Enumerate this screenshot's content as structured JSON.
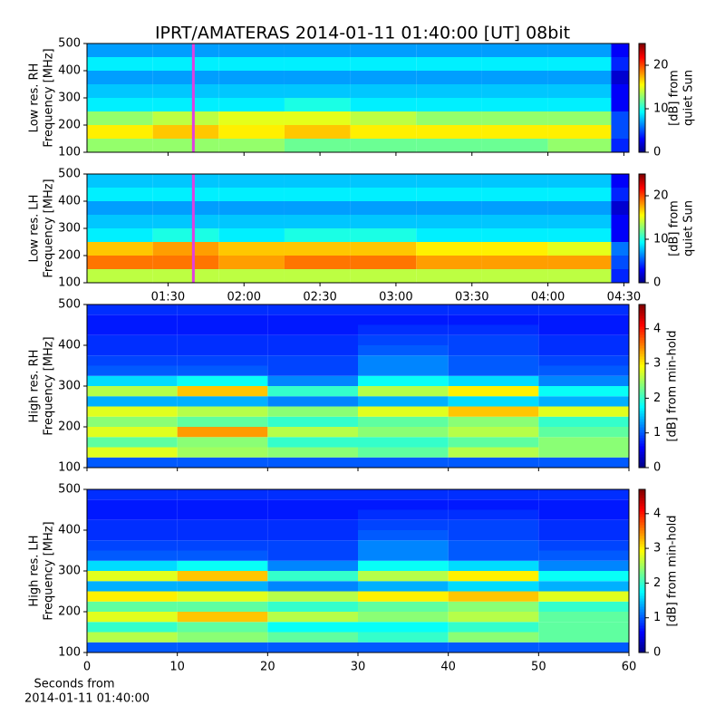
{
  "title": "IPRT/AMATERAS 2014-01-11 01:40:00 [UT]   08bit",
  "chart_data": [
    {
      "type": "heatmap",
      "ylabel": [
        "Low res. RH",
        "Frequency [MHz]"
      ],
      "cbar_label": [
        "[dB] from",
        "quiet Sun"
      ],
      "xlim": [
        58,
        272
      ],
      "xticks": [
        90,
        120,
        150,
        180,
        210,
        240,
        270
      ],
      "ylim": [
        100,
        500
      ],
      "yticks": [
        100,
        200,
        300,
        400,
        500
      ],
      "clim": [
        0,
        25
      ],
      "cticks": [
        0,
        10,
        20
      ],
      "colormap": "jet",
      "vline": {
        "x": 100,
        "color": "#e040e0"
      },
      "x_bins": [
        58,
        84,
        110,
        136,
        162,
        188,
        214,
        240,
        265,
        272
      ],
      "y_bins": [
        100,
        150,
        200,
        250,
        300,
        350,
        400,
        450,
        500
      ],
      "z": [
        [
          13,
          13,
          13,
          12,
          12,
          12,
          12,
          13,
          4
        ],
        [
          16,
          17,
          16,
          17,
          16,
          16,
          16,
          16,
          5
        ],
        [
          13,
          14,
          15,
          15,
          14,
          13,
          13,
          13,
          5
        ],
        [
          9,
          9,
          9,
          10,
          9,
          9,
          9,
          9,
          3
        ],
        [
          8,
          8,
          8,
          8,
          8,
          8,
          8,
          8,
          3
        ],
        [
          7,
          7,
          7,
          7,
          7,
          7,
          7,
          7,
          2
        ],
        [
          9,
          9,
          9,
          9,
          9,
          9,
          9,
          9,
          4
        ],
        [
          7,
          7,
          7,
          7,
          7,
          7,
          7,
          7,
          3
        ]
      ]
    },
    {
      "type": "heatmap",
      "ylabel": [
        "Low res. LH",
        "Frequency [MHz]"
      ],
      "cbar_label": [
        "[dB] from",
        "quiet Sun"
      ],
      "xlim": [
        58,
        272
      ],
      "xticks": [
        {
          "value": 90,
          "label": "01:30"
        },
        {
          "value": 120,
          "label": "02:00"
        },
        {
          "value": 150,
          "label": "02:30"
        },
        {
          "value": 180,
          "label": "03:00"
        },
        {
          "value": 210,
          "label": "03:30"
        },
        {
          "value": 240,
          "label": "04:00"
        },
        {
          "value": 270,
          "label": "04:30"
        }
      ],
      "ylim": [
        100,
        500
      ],
      "yticks": [
        100,
        200,
        300,
        400,
        500
      ],
      "clim": [
        0,
        25
      ],
      "cticks": [
        0,
        10,
        20
      ],
      "colormap": "jet",
      "vline": {
        "x": 100,
        "color": "#e040e0"
      },
      "x_bins": [
        58,
        84,
        110,
        136,
        162,
        188,
        214,
        240,
        265,
        272
      ],
      "y_bins": [
        100,
        150,
        200,
        250,
        300,
        350,
        400,
        450,
        500
      ],
      "z": [
        [
          14,
          14,
          14,
          14,
          14,
          14,
          14,
          14,
          4
        ],
        [
          19,
          19,
          18,
          19,
          19,
          18,
          18,
          18,
          5
        ],
        [
          17,
          18,
          17,
          17,
          17,
          16,
          16,
          15,
          6
        ],
        [
          9,
          10,
          9,
          10,
          10,
          9,
          9,
          9,
          3
        ],
        [
          8,
          8,
          8,
          8,
          8,
          8,
          8,
          8,
          3
        ],
        [
          7,
          7,
          7,
          7,
          7,
          7,
          7,
          7,
          2
        ],
        [
          9,
          9,
          9,
          9,
          9,
          9,
          9,
          9,
          4
        ],
        [
          8,
          8,
          8,
          8,
          8,
          8,
          8,
          8,
          3
        ]
      ]
    },
    {
      "type": "heatmap",
      "ylabel": [
        "High res. RH",
        "Frequency [MHz]"
      ],
      "cbar_label": [
        "[dB] from min-hold"
      ],
      "xlim": [
        0,
        60
      ],
      "xticks": [
        0,
        10,
        20,
        30,
        40,
        50,
        60
      ],
      "ylim": [
        100,
        500
      ],
      "yticks": [
        100,
        200,
        300,
        400,
        500
      ],
      "clim": [
        0,
        4.7
      ],
      "cticks": [
        0,
        1,
        2,
        3,
        4
      ],
      "colormap": "jet",
      "x_bins": [
        0,
        10,
        20,
        30,
        40,
        50,
        60
      ],
      "y_bins": [
        100,
        125,
        150,
        175,
        200,
        225,
        250,
        275,
        300,
        325,
        350,
        375,
        400,
        425,
        450,
        475,
        500
      ],
      "z": [
        [
          1.0,
          1.0,
          1.0,
          1.0,
          1.0,
          1.0
        ],
        [
          2.8,
          2.5,
          2.4,
          2.2,
          2.6,
          2.4
        ],
        [
          2.2,
          2.4,
          2.0,
          2.0,
          2.2,
          2.4
        ],
        [
          2.8,
          3.4,
          2.6,
          2.4,
          2.6,
          2.2
        ],
        [
          2.4,
          2.2,
          2.0,
          2.2,
          2.4,
          2.0
        ],
        [
          2.8,
          2.6,
          2.4,
          2.8,
          3.2,
          2.8
        ],
        [
          1.4,
          1.4,
          1.2,
          1.4,
          1.6,
          1.4
        ],
        [
          2.6,
          3.2,
          2.0,
          2.6,
          3.0,
          1.8
        ],
        [
          1.6,
          1.8,
          1.2,
          1.8,
          1.6,
          1.2
        ],
        [
          1.0,
          1.0,
          0.9,
          1.2,
          1.0,
          1.0
        ],
        [
          0.9,
          0.9,
          0.9,
          1.2,
          1.0,
          0.9
        ],
        [
          0.8,
          0.8,
          0.8,
          1.0,
          0.9,
          0.8
        ],
        [
          0.8,
          0.8,
          0.8,
          0.9,
          0.9,
          0.8
        ],
        [
          0.7,
          0.7,
          0.7,
          0.8,
          0.8,
          0.7
        ],
        [
          0.7,
          0.7,
          0.7,
          0.7,
          0.7,
          0.7
        ],
        [
          0.8,
          0.8,
          0.8,
          0.8,
          0.8,
          0.8
        ]
      ]
    },
    {
      "type": "heatmap",
      "ylabel": [
        "High res. LH",
        "Frequency [MHz]"
      ],
      "cbar_label": [
        "[dB] from min-hold"
      ],
      "xlabel": [
        "Seconds from",
        "2014-01-11 01:40:00"
      ],
      "xlim": [
        0,
        60
      ],
      "xticks": [
        0,
        10,
        20,
        30,
        40,
        50,
        60
      ],
      "ylim": [
        100,
        500
      ],
      "yticks": [
        100,
        200,
        300,
        400,
        500
      ],
      "clim": [
        0,
        4.7
      ],
      "cticks": [
        0,
        1,
        2,
        3,
        4
      ],
      "colormap": "jet",
      "x_bins": [
        0,
        10,
        20,
        30,
        40,
        50,
        60
      ],
      "y_bins": [
        100,
        125,
        150,
        175,
        200,
        225,
        250,
        275,
        300,
        325,
        350,
        375,
        400,
        425,
        450,
        475,
        500
      ],
      "z": [
        [
          1.0,
          1.0,
          1.0,
          1.0,
          1.0,
          1.0
        ],
        [
          2.6,
          2.4,
          2.2,
          2.0,
          2.4,
          2.2
        ],
        [
          2.0,
          2.2,
          1.8,
          1.8,
          2.0,
          2.2
        ],
        [
          2.8,
          3.2,
          2.6,
          2.4,
          2.6,
          2.2
        ],
        [
          2.2,
          2.2,
          2.0,
          2.2,
          2.4,
          2.0
        ],
        [
          3.0,
          2.8,
          2.6,
          3.0,
          3.2,
          2.8
        ],
        [
          1.4,
          1.4,
          1.2,
          1.4,
          1.6,
          1.4
        ],
        [
          2.8,
          3.2,
          2.0,
          2.6,
          3.0,
          1.8
        ],
        [
          1.6,
          1.8,
          1.2,
          1.8,
          1.6,
          1.2
        ],
        [
          1.0,
          1.0,
          0.9,
          1.2,
          1.0,
          1.0
        ],
        [
          0.9,
          0.9,
          0.9,
          1.2,
          1.0,
          0.9
        ],
        [
          0.8,
          0.8,
          0.8,
          1.0,
          0.9,
          0.8
        ],
        [
          0.8,
          0.8,
          0.8,
          0.9,
          0.9,
          0.8
        ],
        [
          0.7,
          0.7,
          0.7,
          0.8,
          0.8,
          0.7
        ],
        [
          0.7,
          0.7,
          0.7,
          0.7,
          0.7,
          0.7
        ],
        [
          0.8,
          0.8,
          0.8,
          0.8,
          0.8,
          0.8
        ]
      ]
    }
  ]
}
